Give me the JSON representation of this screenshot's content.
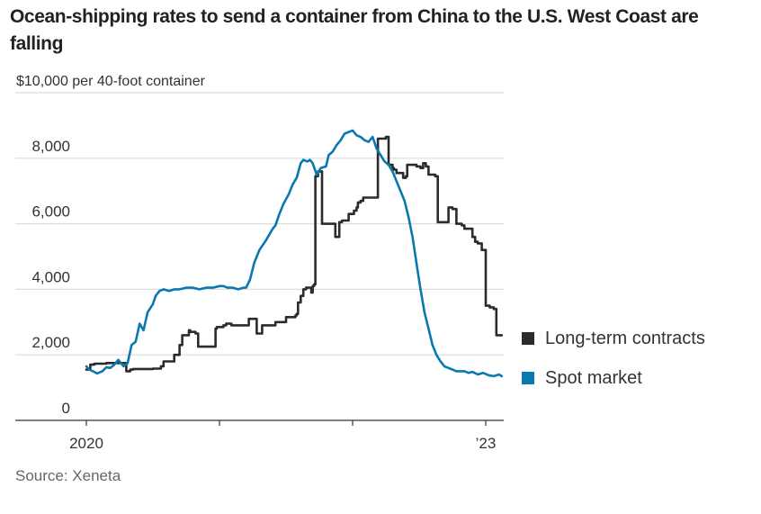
{
  "chart_data": {
    "type": "line",
    "title": "Ocean-shipping rates to send a container from China to the U.S. West Coast are falling",
    "ylabel": "$10,000 per 40-foot container",
    "xlabel": "",
    "ylim": [
      0,
      10000
    ],
    "xlim": [
      2020.0,
      2023.12
    ],
    "yticks": [
      0,
      2000,
      4000,
      6000,
      8000,
      10000
    ],
    "ytick_labels": [
      "0",
      "2,000",
      "4,000",
      "6,000",
      "8,000",
      "$10,000 per 40-foot container"
    ],
    "xticks": [
      2020.0,
      2021.0,
      2022.0,
      2023.0
    ],
    "xtick_labels": [
      "2020",
      "",
      "",
      "’23"
    ],
    "grid": true,
    "legend_position": "right",
    "source": "Source: Xeneta",
    "series": [
      {
        "name": "Long-term contracts",
        "color": "#2b2b2b",
        "x": [
          2020.0,
          2020.03,
          2020.06,
          2020.15,
          2020.29,
          2020.3,
          2020.33,
          2020.35,
          2020.5,
          2020.56,
          2020.58,
          2020.66,
          2020.7,
          2020.72,
          2020.77,
          2020.78,
          2020.82,
          2020.84,
          2020.97,
          2020.98,
          2021.03,
          2021.05,
          2021.09,
          2021.14,
          2021.21,
          2021.22,
          2021.27,
          2021.28,
          2021.32,
          2021.42,
          2021.5,
          2021.57,
          2021.58,
          2021.59,
          2021.61,
          2021.63,
          2021.65,
          2021.67,
          2021.69,
          2021.7,
          2021.71,
          2021.72,
          2021.74,
          2021.77,
          2021.86,
          2021.87,
          2021.9,
          2021.92,
          2021.97,
          2022.01,
          2022.03,
          2022.04,
          2022.06,
          2022.08,
          2022.15,
          2022.19,
          2022.25,
          2022.27,
          2022.3,
          2022.31,
          2022.33,
          2022.35,
          2022.38,
          2022.4,
          2022.41,
          2022.43,
          2022.48,
          2022.51,
          2022.53,
          2022.55,
          2022.57,
          2022.62,
          2022.64,
          2022.7,
          2022.72,
          2022.75,
          2022.78,
          2022.82,
          2022.84,
          2022.9,
          2022.92,
          2022.94,
          2022.97,
          2023.0,
          2023.03,
          2023.06,
          2023.08,
          2023.1,
          2023.12
        ],
        "y": [
          1550,
          1700,
          1730,
          1750,
          1750,
          1500,
          1550,
          1570,
          1580,
          1650,
          1800,
          2000,
          2300,
          2600,
          2750,
          2700,
          2650,
          2250,
          2800,
          2850,
          2900,
          2950,
          2900,
          2900,
          2900,
          3100,
          3100,
          2650,
          2900,
          3000,
          3150,
          3200,
          3250,
          3600,
          3800,
          4000,
          4050,
          4050,
          3900,
          4100,
          4150,
          7450,
          7600,
          6000,
          6000,
          5600,
          6050,
          6100,
          6300,
          6400,
          6500,
          6650,
          6700,
          6800,
          6800,
          8600,
          8650,
          7800,
          7700,
          7650,
          7550,
          7550,
          7400,
          7450,
          7800,
          7800,
          7750,
          7700,
          7850,
          7750,
          7500,
          7450,
          6050,
          6050,
          6500,
          6450,
          6000,
          5950,
          5850,
          5600,
          5450,
          5400,
          5200,
          3500,
          3450,
          3400,
          2600,
          2600,
          2600
        ]
      },
      {
        "name": "Spot market",
        "color": "#0a78b0",
        "x": [
          2020.0,
          2020.02,
          2020.05,
          2020.08,
          2020.12,
          2020.15,
          2020.18,
          2020.21,
          2020.24,
          2020.28,
          2020.31,
          2020.34,
          2020.37,
          2020.4,
          2020.43,
          2020.46,
          2020.5,
          2020.52,
          2020.55,
          2020.58,
          2020.62,
          2020.66,
          2020.7,
          2020.75,
          2020.8,
          2020.85,
          2020.9,
          2020.95,
          2021.0,
          2021.03,
          2021.06,
          2021.1,
          2021.14,
          2021.18,
          2021.2,
          2021.23,
          2021.26,
          2021.3,
          2021.35,
          2021.4,
          2021.42,
          2021.45,
          2021.48,
          2021.52,
          2021.55,
          2021.58,
          2021.61,
          2021.63,
          2021.66,
          2021.68,
          2021.7,
          2021.73,
          2021.76,
          2021.8,
          2021.82,
          2021.85,
          2021.88,
          2021.91,
          2021.94,
          2021.97,
          2022.0,
          2022.03,
          2022.06,
          2022.09,
          2022.12,
          2022.15,
          2022.18,
          2022.21,
          2022.24,
          2022.27,
          2022.3,
          2022.33,
          2022.36,
          2022.39,
          2022.42,
          2022.45,
          2022.48,
          2022.51,
          2022.54,
          2022.57,
          2022.6,
          2022.63,
          2022.66,
          2022.69,
          2022.72,
          2022.75,
          2022.78,
          2022.81,
          2022.84,
          2022.87,
          2022.9,
          2022.94,
          2022.98,
          2023.02,
          2023.06,
          2023.1,
          2023.12
        ],
        "y": [
          1650,
          1550,
          1500,
          1430,
          1500,
          1620,
          1600,
          1700,
          1850,
          1650,
          1750,
          2300,
          2400,
          2950,
          2750,
          3300,
          3550,
          3800,
          3950,
          4000,
          3950,
          4000,
          4000,
          4050,
          4050,
          4000,
          4050,
          4050,
          4100,
          4100,
          4050,
          4050,
          4000,
          4050,
          4050,
          4300,
          4800,
          5200,
          5500,
          5850,
          5950,
          6300,
          6600,
          6900,
          7200,
          7400,
          7850,
          7950,
          7900,
          7950,
          7850,
          7500,
          7700,
          7750,
          8100,
          8200,
          8400,
          8550,
          8750,
          8800,
          8850,
          8700,
          8650,
          8550,
          8500,
          8650,
          8300,
          8100,
          7900,
          7800,
          7600,
          7300,
          7000,
          6700,
          6200,
          5600,
          4800,
          4000,
          3300,
          2800,
          2300,
          2000,
          1800,
          1650,
          1600,
          1550,
          1500,
          1500,
          1500,
          1450,
          1480,
          1400,
          1450,
          1380,
          1350,
          1400,
          1350
        ]
      }
    ]
  },
  "legend": {
    "items": [
      {
        "label": "Long-term contracts",
        "color": "#2b2b2b"
      },
      {
        "label": "Spot market",
        "color": "#0a78b0"
      }
    ]
  }
}
